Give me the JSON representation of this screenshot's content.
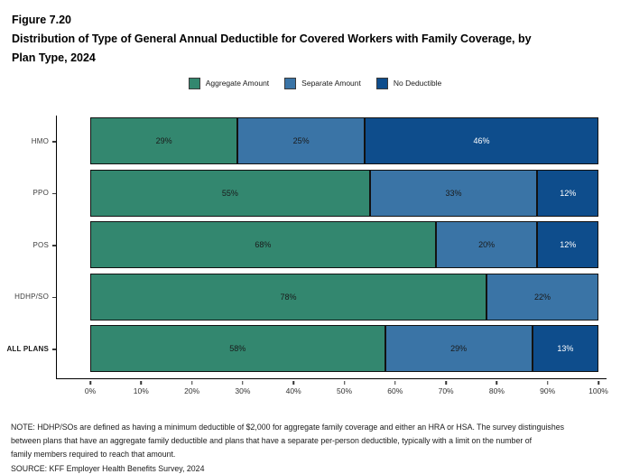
{
  "header": {
    "figure_label": "Figure 7.20",
    "title": "Distribution of Type of General Annual Deductible for Covered Workers with Family Coverage, by Plan Type, 2024"
  },
  "chart_data": {
    "type": "bar",
    "orientation": "horizontal",
    "stacked": true,
    "title": "Distribution of Type of General Annual Deductible for Covered Workers with Family Coverage, by Plan Type, 2024",
    "categories": [
      "HMO",
      "PPO",
      "POS",
      "HDHP/SO",
      "ALL PLANS"
    ],
    "series": [
      {
        "name": "Aggregate Amount",
        "color": "#33876F",
        "label_color": "#1a1a1a",
        "values": [
          29,
          55,
          68,
          78,
          58
        ]
      },
      {
        "name": "Separate Amount",
        "color": "#3A74A6",
        "label_color": "#1a1a1a",
        "values": [
          25,
          33,
          20,
          22,
          29
        ]
      },
      {
        "name": "No Deductible",
        "color": "#0E4D8C",
        "label_color": "#ffffff",
        "values": [
          46,
          12,
          12,
          0,
          13
        ]
      }
    ],
    "value_suffix": "%",
    "xlim": [
      0,
      100
    ],
    "x_ticks": [
      "0%",
      "10%",
      "20%",
      "30%",
      "40%",
      "50%",
      "60%",
      "70%",
      "80%",
      "90%",
      "100%"
    ],
    "legend_position": "top-center",
    "grid": false
  },
  "footer": {
    "note_lines": [
      "NOTE: HDHP/SOs are defined as having a minimum deductible of $2,000 for aggregate family coverage and either an HRA or HSA. The survey distinguishes",
      "between plans that have an aggregate family deductible and plans that have a separate per-person deductible, typically with a limit on the number of",
      "family members required to reach that amount."
    ],
    "source": "SOURCE: KFF Employer Health Benefits Survey, 2024"
  }
}
